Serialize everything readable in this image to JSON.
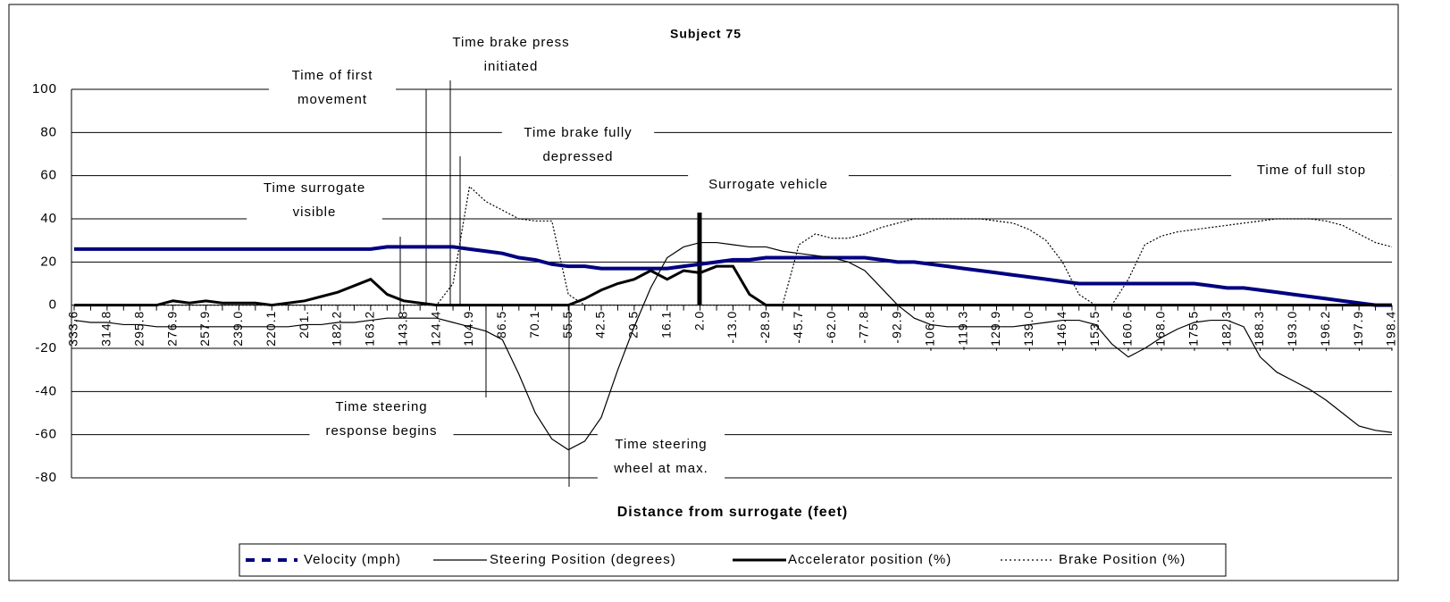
{
  "chart_data": {
    "type": "line",
    "title": "Subject 75",
    "x_label": "Distance from surrogate (feet)",
    "categories": [
      "333.6",
      null,
      "314.8",
      null,
      "295.8",
      null,
      "276.9",
      null,
      "257.9",
      null,
      "239.0",
      null,
      "220.1",
      null,
      "201.",
      null,
      "182.2",
      null,
      "163.2",
      null,
      "143.8",
      null,
      "124.4",
      null,
      "104.9",
      null,
      "86.5",
      null,
      "70.1",
      null,
      "55.5",
      null,
      "42.5",
      null,
      "29.5",
      null,
      "16.1",
      null,
      "2.0",
      null,
      "-13.0",
      null,
      "-28.9",
      null,
      "-45.7",
      null,
      "-62.0",
      null,
      "-77.8",
      null,
      "-92.9",
      null,
      "-106.8",
      null,
      "-119.3",
      null,
      "-129.9",
      null,
      "-139.0",
      null,
      "-146.4",
      null,
      "-153.5",
      null,
      "-160.6",
      null,
      "-168.0",
      null,
      "-175.5",
      null,
      "-182.3",
      null,
      "-188.3",
      null,
      "-193.0",
      null,
      "-196.2",
      null,
      "-197.9",
      null,
      "-198.4"
    ],
    "series": [
      {
        "name": "Velocity (mph)",
        "color": "#000080",
        "values": [
          26,
          26,
          26,
          26,
          26,
          26,
          26,
          26,
          26,
          26,
          26,
          26,
          26,
          26,
          26,
          26,
          26,
          26,
          26,
          27,
          27,
          27,
          27,
          27,
          26,
          25,
          24,
          22,
          21,
          19,
          18,
          18,
          17,
          17,
          17,
          17,
          17,
          18,
          19,
          20,
          21,
          21,
          22,
          22,
          22,
          22,
          22,
          22,
          22,
          21,
          20,
          20,
          19,
          18,
          17,
          16,
          15,
          14,
          13,
          12,
          11,
          10,
          10,
          10,
          10,
          10,
          10,
          10,
          10,
          9,
          8,
          8,
          7,
          6,
          5,
          4,
          3,
          2,
          1,
          0,
          0
        ]
      },
      {
        "name": "Steering Position (degrees)",
        "color": "#000000",
        "values": [
          -7,
          -8,
          -8,
          -9,
          -9,
          -10,
          -10,
          -10,
          -10,
          -10,
          -10,
          -10,
          -10,
          -10,
          -9,
          -9,
          -8,
          -8,
          -7,
          -6,
          -6,
          -6,
          -6,
          -8,
          -10,
          -12,
          -16,
          -32,
          -50,
          -62,
          -67,
          -63,
          -52,
          -30,
          -10,
          8,
          22,
          27,
          29,
          29,
          28,
          27,
          27,
          25,
          24,
          23,
          22,
          20,
          16,
          8,
          0,
          -6,
          -9,
          -10,
          -10,
          -10,
          -10,
          -10,
          -9,
          -8,
          -7,
          -7,
          -9,
          -18,
          -24,
          -20,
          -15,
          -11,
          -8,
          -7,
          -7,
          -10,
          -24,
          -31,
          -35,
          -39,
          -44,
          -50,
          -56,
          -58,
          -59
        ]
      },
      {
        "name": "Accelerator position (%)",
        "color": "#000000",
        "values": [
          0,
          0,
          0,
          0,
          0,
          0,
          2,
          1,
          2,
          1,
          1,
          1,
          0,
          1,
          2,
          4,
          6,
          9,
          12,
          5,
          2,
          1,
          0,
          0,
          0,
          0,
          0,
          0,
          0,
          0,
          0,
          3,
          7,
          10,
          12,
          16,
          12,
          16,
          15,
          18,
          18,
          5,
          0,
          0,
          0,
          0,
          0,
          0,
          0,
          0,
          0,
          0,
          0,
          0,
          0,
          0,
          0,
          0,
          0,
          0,
          0,
          0,
          0,
          0,
          0,
          0,
          0,
          0,
          0,
          0,
          0,
          0,
          0,
          0,
          0,
          0,
          0,
          0,
          0,
          0,
          0
        ]
      },
      {
        "name": "Brake Position (%)",
        "color": "#000000",
        "values": [
          0,
          0,
          0,
          0,
          0,
          0,
          0,
          0,
          0,
          0,
          0,
          0,
          0,
          0,
          0,
          0,
          0,
          0,
          0,
          0,
          0,
          0,
          0,
          10,
          55,
          48,
          44,
          40,
          39,
          39,
          5,
          0,
          0,
          0,
          0,
          0,
          0,
          0,
          0,
          0,
          0,
          0,
          0,
          0,
          28,
          33,
          31,
          31,
          33,
          36,
          38,
          40,
          40,
          40,
          40,
          40,
          39,
          38,
          35,
          30,
          20,
          5,
          0,
          0,
          12,
          28,
          32,
          34,
          35,
          36,
          37,
          38,
          39,
          40,
          40,
          40,
          39,
          37,
          33,
          29,
          27
        ]
      }
    ],
    "ylim": [
      -80,
      100
    ],
    "yticks": [
      -80,
      -60,
      -40,
      -20,
      0,
      20,
      40,
      60,
      80,
      100
    ],
    "grid": true,
    "annotations": [
      {
        "lines": [
          "Time brake press",
          "initiated"
        ]
      },
      {
        "lines": [
          "Time of first",
          "movement"
        ]
      },
      {
        "lines": [
          "Time brake fully",
          "depressed"
        ]
      },
      {
        "lines": [
          "Time surrogate",
          "visible"
        ]
      },
      {
        "lines": [
          "Surrogate vehicle"
        ]
      },
      {
        "lines": [
          "Time of full stop"
        ]
      },
      {
        "lines": [
          "Time steering",
          "response begins"
        ]
      },
      {
        "lines": [
          "Time steering",
          "wheel at max."
        ]
      }
    ]
  }
}
